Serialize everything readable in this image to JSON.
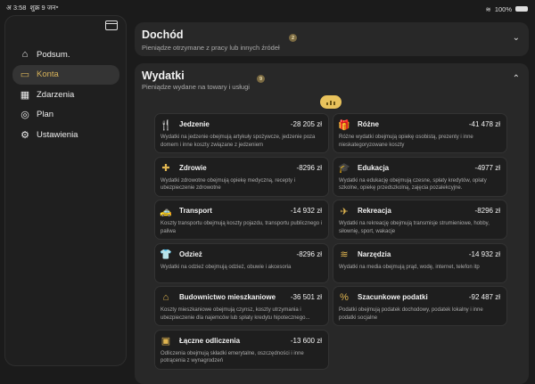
{
  "status_bar": {
    "time": "अ 3:58",
    "date": "शुक्र 9 जन॰",
    "battery": "100%"
  },
  "sidebar": {
    "items": [
      {
        "label": "Podsum.",
        "icon": "house-icon",
        "glyph": "⌂"
      },
      {
        "label": "Konta",
        "icon": "wallet-icon",
        "glyph": "▭",
        "active": true
      },
      {
        "label": "Zdarzenia",
        "icon": "calendar-icon",
        "glyph": "▦"
      },
      {
        "label": "Plan",
        "icon": "target-icon",
        "glyph": "◎"
      },
      {
        "label": "Ustawienia",
        "icon": "gear-icon",
        "glyph": "⚙"
      }
    ]
  },
  "income": {
    "title": "Dochód",
    "subtitle": "Pieniądze otrzymane z pracy lub innych źródeł",
    "count": "2"
  },
  "expenses": {
    "title": "Wydatki",
    "subtitle": "Pieniądze wydane na towary i usługi",
    "count": "9",
    "categories": [
      {
        "name": "Jedzenie",
        "amount": "-28 205 zł",
        "icon": "fork-knife-icon",
        "glyph": "🍴",
        "desc": "Wydatki na jedzenie obejmują artykuły spożywcze, jedzenie poza domem i inne koszty związane z jedzeniem"
      },
      {
        "name": "Różne",
        "amount": "-41 478 zł",
        "icon": "gift-icon",
        "glyph": "🎁",
        "desc": "Różne wydatki obejmują opiekę osobistą, prezenty i inne nieskategoryzowane koszty"
      },
      {
        "name": "Zdrowie",
        "amount": "-8296 zł",
        "icon": "medical-kit-icon",
        "glyph": "✚",
        "desc": "Wydatki zdrowotne obejmują opiekę medyczną, recepty i ubezpieczenie zdrowotne"
      },
      {
        "name": "Edukacja",
        "amount": "-4977 zł",
        "icon": "graduation-cap-icon",
        "glyph": "🎓",
        "desc": "Wydatki na edukację obejmują czesne, spłaty kredytów, opłaty szkolne, opiekę przedszkolną, zajęcia pozalekcyjne."
      },
      {
        "name": "Transport",
        "amount": "-14 932 zł",
        "icon": "car-icon",
        "glyph": "🚕",
        "desc": "Koszty transportu obejmują koszty pojazdu, transportu publicznego i paliwa"
      },
      {
        "name": "Rekreacja",
        "amount": "-8296 zł",
        "icon": "airplane-icon",
        "glyph": "✈",
        "desc": "Wydatki na rekreację obejmują transmisje strumieniowe, hobby, siłownię, sport, wakacje"
      },
      {
        "name": "Odzież",
        "amount": "-8296 zł",
        "icon": "tshirt-icon",
        "glyph": "👕",
        "desc": "Wydatki na odzież obejmują odzież, obuwie i akcesoria"
      },
      {
        "name": "Narzędzia",
        "amount": "-14 932 zł",
        "icon": "wifi-icon",
        "glyph": "≋",
        "desc": "Wydatki na media obejmują prąd, wodę, internet, telefon itp"
      },
      {
        "name": "Budownictwo mieszkaniowe",
        "amount": "-36 501 zł",
        "icon": "house-icon",
        "glyph": "⌂",
        "desc": "Koszty mieszkaniowe obejmują czynsz, koszty utrzymania i ubezpieczenie dla najemców lub spłaty kredytu hipotecznego..."
      },
      {
        "name": "Szacunkowe podatki",
        "amount": "-92 487 zł",
        "icon": "percent-badge-icon",
        "glyph": "%",
        "desc": "Podatki obejmują podatek dochodowy, podatek lokalny i inne podatki socjalne"
      },
      {
        "name": "Łączne odliczenia",
        "amount": "-13 600 zł",
        "icon": "banknote-icon",
        "glyph": "▣",
        "desc": "Odliczenia obejmują składki emerytalne, oszczędności i inne potrącenia z wynagrodzeń"
      }
    ]
  },
  "colors": {
    "accent": "#e0b550",
    "background": "#1b1b1b",
    "card": "#282828"
  }
}
